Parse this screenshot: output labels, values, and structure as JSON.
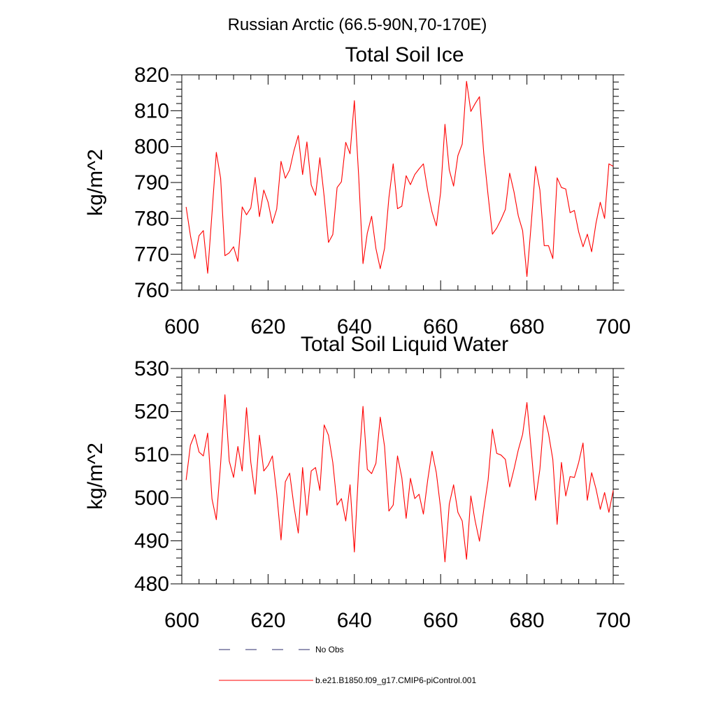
{
  "figure": {
    "title": "Russian Arctic (66.5-90N,70-170E)"
  },
  "legend": {
    "items": [
      {
        "label": "No Obs",
        "color": "#2b2b6b",
        "style": "dashed"
      },
      {
        "label": "b.e21.B1850.f09_g17.CMIP6-piControl.001",
        "color": "#ff0000",
        "style": "solid"
      }
    ]
  },
  "chart_data": [
    {
      "type": "line",
      "title": "Total Soil Ice",
      "xlabel": "",
      "ylabel": "kg/m^2",
      "xlim": [
        600,
        700
      ],
      "ylim": [
        760,
        820
      ],
      "xticks": [
        600,
        620,
        640,
        660,
        680,
        700
      ],
      "yticks": [
        760,
        770,
        780,
        790,
        800,
        810,
        820
      ],
      "line_color": "#ff0000",
      "series": [
        {
          "x": [
            601,
            602,
            603,
            604,
            605,
            606,
            607,
            608,
            609,
            610,
            611,
            612,
            613,
            614,
            615,
            616,
            617,
            618,
            619,
            620,
            621,
            622,
            623,
            624,
            625,
            626,
            627,
            628,
            629,
            630,
            631,
            632,
            633,
            634,
            635,
            636,
            637,
            638,
            639,
            640,
            641,
            642,
            643,
            644,
            645,
            646,
            647,
            648,
            649,
            650,
            651,
            652,
            653,
            654,
            655,
            656,
            657,
            658,
            659,
            660,
            661,
            662,
            663,
            664,
            665,
            666,
            667,
            668,
            669,
            670,
            671,
            672,
            673,
            674,
            675,
            676,
            677,
            678,
            679,
            680,
            681,
            682,
            683,
            684,
            685,
            686,
            687,
            688,
            689,
            690,
            691,
            692,
            693,
            694,
            695,
            696,
            697,
            698,
            699,
            700
          ],
          "values": [
            783.2,
            775.2,
            768.8,
            775.2,
            776.6,
            764.7,
            781.5,
            798.4,
            791.2,
            769.6,
            770.4,
            772.1,
            768.0,
            783.2,
            781.0,
            782.9,
            791.4,
            780.5,
            787.9,
            784.5,
            778.6,
            782.6,
            795.9,
            791.2,
            793.5,
            798.9,
            803.1,
            792.2,
            801.3,
            789.3,
            786.4,
            796.9,
            786.1,
            773.3,
            775.5,
            788.6,
            790.2,
            801.2,
            798.0,
            812.8,
            791.8,
            767.4,
            775.9,
            780.6,
            771.6,
            766.0,
            771.7,
            785.7,
            795.2,
            782.7,
            783.4,
            791.9,
            789.4,
            792.2,
            793.8,
            795.2,
            787.7,
            781.8,
            777.9,
            787.3,
            806.2,
            793.5,
            789.0,
            797.5,
            800.7,
            818.2,
            809.8,
            812.0,
            813.9,
            798.0,
            786.4,
            775.6,
            777.3,
            779.7,
            782.5,
            792.6,
            787.4,
            780.7,
            776.6,
            763.8,
            778.6,
            794.5,
            787.9,
            772.4,
            772.4,
            768.8,
            791.3,
            788.6,
            788.2,
            781.6,
            782.2,
            776.2,
            772.1,
            775.6,
            770.7,
            778.6,
            784.5,
            780.0,
            795.2,
            794.5
          ]
        }
      ]
    },
    {
      "type": "line",
      "title": "Total Soil Liquid Water",
      "xlabel": "",
      "ylabel": "kg/m^2",
      "xlim": [
        600,
        700
      ],
      "ylim": [
        480,
        530
      ],
      "xticks": [
        600,
        620,
        640,
        660,
        680,
        700
      ],
      "yticks": [
        480,
        490,
        500,
        510,
        520,
        530
      ],
      "line_color": "#ff0000",
      "series": [
        {
          "x": [
            601,
            602,
            603,
            604,
            605,
            606,
            607,
            608,
            609,
            610,
            611,
            612,
            613,
            614,
            615,
            616,
            617,
            618,
            619,
            620,
            621,
            622,
            623,
            624,
            625,
            626,
            627,
            628,
            629,
            630,
            631,
            632,
            633,
            634,
            635,
            636,
            637,
            638,
            639,
            640,
            641,
            642,
            643,
            644,
            645,
            646,
            647,
            648,
            649,
            650,
            651,
            652,
            653,
            654,
            655,
            656,
            657,
            658,
            659,
            660,
            661,
            662,
            663,
            664,
            665,
            666,
            667,
            668,
            669,
            670,
            671,
            672,
            673,
            674,
            675,
            676,
            677,
            678,
            679,
            680,
            681,
            682,
            683,
            684,
            685,
            686,
            687,
            688,
            689,
            690,
            691,
            692,
            693,
            694,
            695,
            696,
            697,
            698,
            699,
            700
          ],
          "values": [
            504.1,
            512.2,
            514.7,
            510.6,
            509.7,
            515.0,
            499.7,
            494.9,
            507.9,
            523.9,
            508.5,
            504.7,
            511.9,
            506.2,
            520.9,
            508.2,
            500.8,
            514.5,
            506.2,
            507.5,
            509.7,
            501.0,
            490.2,
            503.7,
            505.7,
            498.0,
            491.8,
            507.0,
            495.9,
            506.2,
            507.0,
            501.7,
            516.9,
            514.5,
            508.2,
            498.3,
            499.8,
            494.6,
            503.0,
            487.4,
            507.0,
            521.2,
            506.6,
            505.6,
            508.0,
            518.7,
            511.9,
            496.9,
            498.3,
            509.7,
            504.7,
            495.2,
            504.5,
            499.8,
            500.8,
            496.2,
            504.1,
            510.8,
            505.8,
            497.5,
            485.1,
            498.5,
            503.0,
            496.6,
            494.6,
            485.7,
            500.4,
            494.6,
            489.9,
            497.3,
            504.1,
            515.9,
            510.3,
            509.9,
            508.9,
            502.5,
            506.6,
            511.1,
            514.7,
            522.1,
            511.0,
            499.4,
            506.6,
            519.1,
            514.9,
            508.9,
            493.8,
            508.2,
            500.4,
            504.9,
            504.7,
            508.2,
            512.7,
            499.4,
            505.8,
            502.1,
            497.3,
            501.2,
            496.6,
            501.7
          ]
        }
      ]
    }
  ]
}
